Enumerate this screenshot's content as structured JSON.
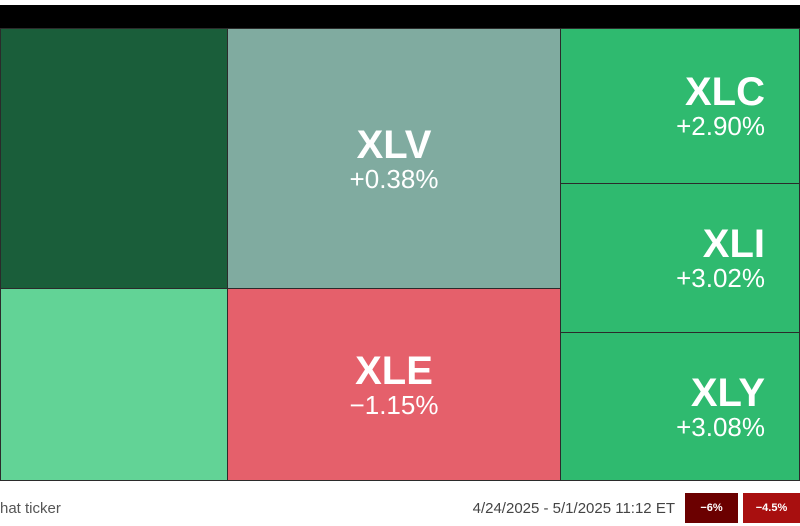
{
  "tiles": [
    {
      "color": "#1a5e3a"
    },
    {
      "color": "#62d396"
    },
    {
      "ticker": "XLV",
      "change": "+0.38%",
      "color": "#80aba0"
    },
    {
      "ticker": "XLE",
      "change": "−1.15%",
      "color": "#e5606b"
    },
    {
      "ticker": "XLC",
      "change": "+2.90%",
      "color": "#2fba6f"
    },
    {
      "ticker": "XLI",
      "change": "+3.02%",
      "color": "#2fba6f"
    },
    {
      "ticker": "XLY",
      "change": "+3.08%",
      "color": "#2fba6f"
    }
  ],
  "footer": {
    "hint": "hat ticker",
    "date_range": "4/24/2025 - 5/1/2025 11:12 ET",
    "legend": [
      {
        "label": "−6%",
        "color": "#6b0000"
      },
      {
        "label": "−4.5%",
        "color": "#a80f0f"
      }
    ]
  }
}
